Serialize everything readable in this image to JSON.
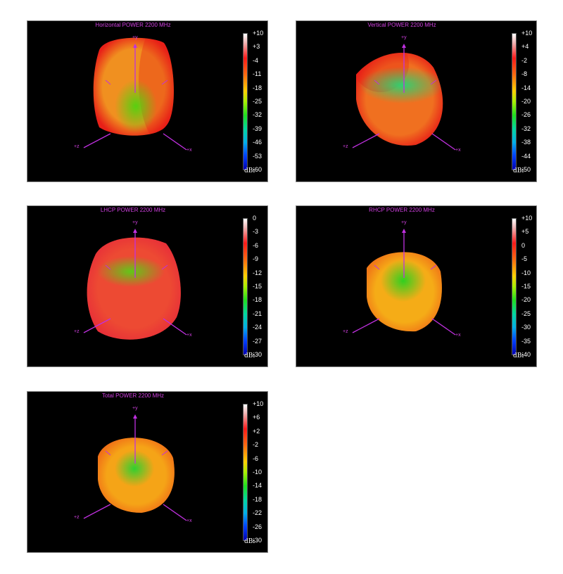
{
  "chart_data": [
    {
      "type": "other",
      "title": "Horizontal POWER 2200  MHz",
      "unit": "dBi",
      "ticks": [
        "+10",
        "+3",
        "-4",
        "-11",
        "-18",
        "-25",
        "-32",
        "-39",
        "-46",
        "-53",
        "-60"
      ],
      "range": [
        -60,
        10
      ],
      "axes": [
        "+y",
        "+z",
        "+x"
      ],
      "pattern": {
        "body": "#f09020",
        "edge": "#e82018",
        "spot": "#58d010"
      }
    },
    {
      "type": "other",
      "title": "Vertical POWER 2200  MHz",
      "unit": "dBi",
      "ticks": [
        "+10",
        "+4",
        "-2",
        "-8",
        "-14",
        "-20",
        "-26",
        "-32",
        "-38",
        "-44",
        "-50"
      ],
      "range": [
        -50,
        10
      ],
      "axes": [
        "+y",
        "+z",
        "+x"
      ],
      "pattern": {
        "body": "#f07020",
        "edge": "#e82018",
        "spot": "#30d070"
      }
    },
    {
      "type": "other",
      "title": "LHCP POWER 2200  MHz",
      "unit": "dBi",
      "ticks": [
        "0",
        "-3",
        "-6",
        "-9",
        "-12",
        "-15",
        "-18",
        "-21",
        "-24",
        "-27",
        "-30"
      ],
      "range": [
        -30,
        0
      ],
      "axes": [
        "+y",
        "+z",
        "+x"
      ],
      "pattern": {
        "body": "#f05830",
        "edge": "#e83038",
        "spot": "#60c818"
      }
    },
    {
      "type": "other",
      "title": "RHCP POWER 2200  MHz",
      "unit": "dBi",
      "ticks": [
        "+10",
        "+5",
        "0",
        "-5",
        "-10",
        "-15",
        "-20",
        "-25",
        "-30",
        "-35",
        "-40"
      ],
      "range": [
        -40,
        10
      ],
      "axes": [
        "+y",
        "+z",
        "+x"
      ],
      "pattern": {
        "body": "#f8c818",
        "edge": "#f07818",
        "spot": "#30d020"
      }
    },
    {
      "type": "other",
      "title": "Total POWER 2200  MHz",
      "unit": "dBi",
      "ticks": [
        "+10",
        "+6",
        "+2",
        "-2",
        "-6",
        "-10",
        "-14",
        "-18",
        "-22",
        "-26",
        "-30"
      ],
      "range": [
        -30,
        10
      ],
      "axes": [
        "+y",
        "+z",
        "+x"
      ],
      "pattern": {
        "body": "#f8c018",
        "edge": "#f07018",
        "spot": "#30d030"
      }
    }
  ]
}
